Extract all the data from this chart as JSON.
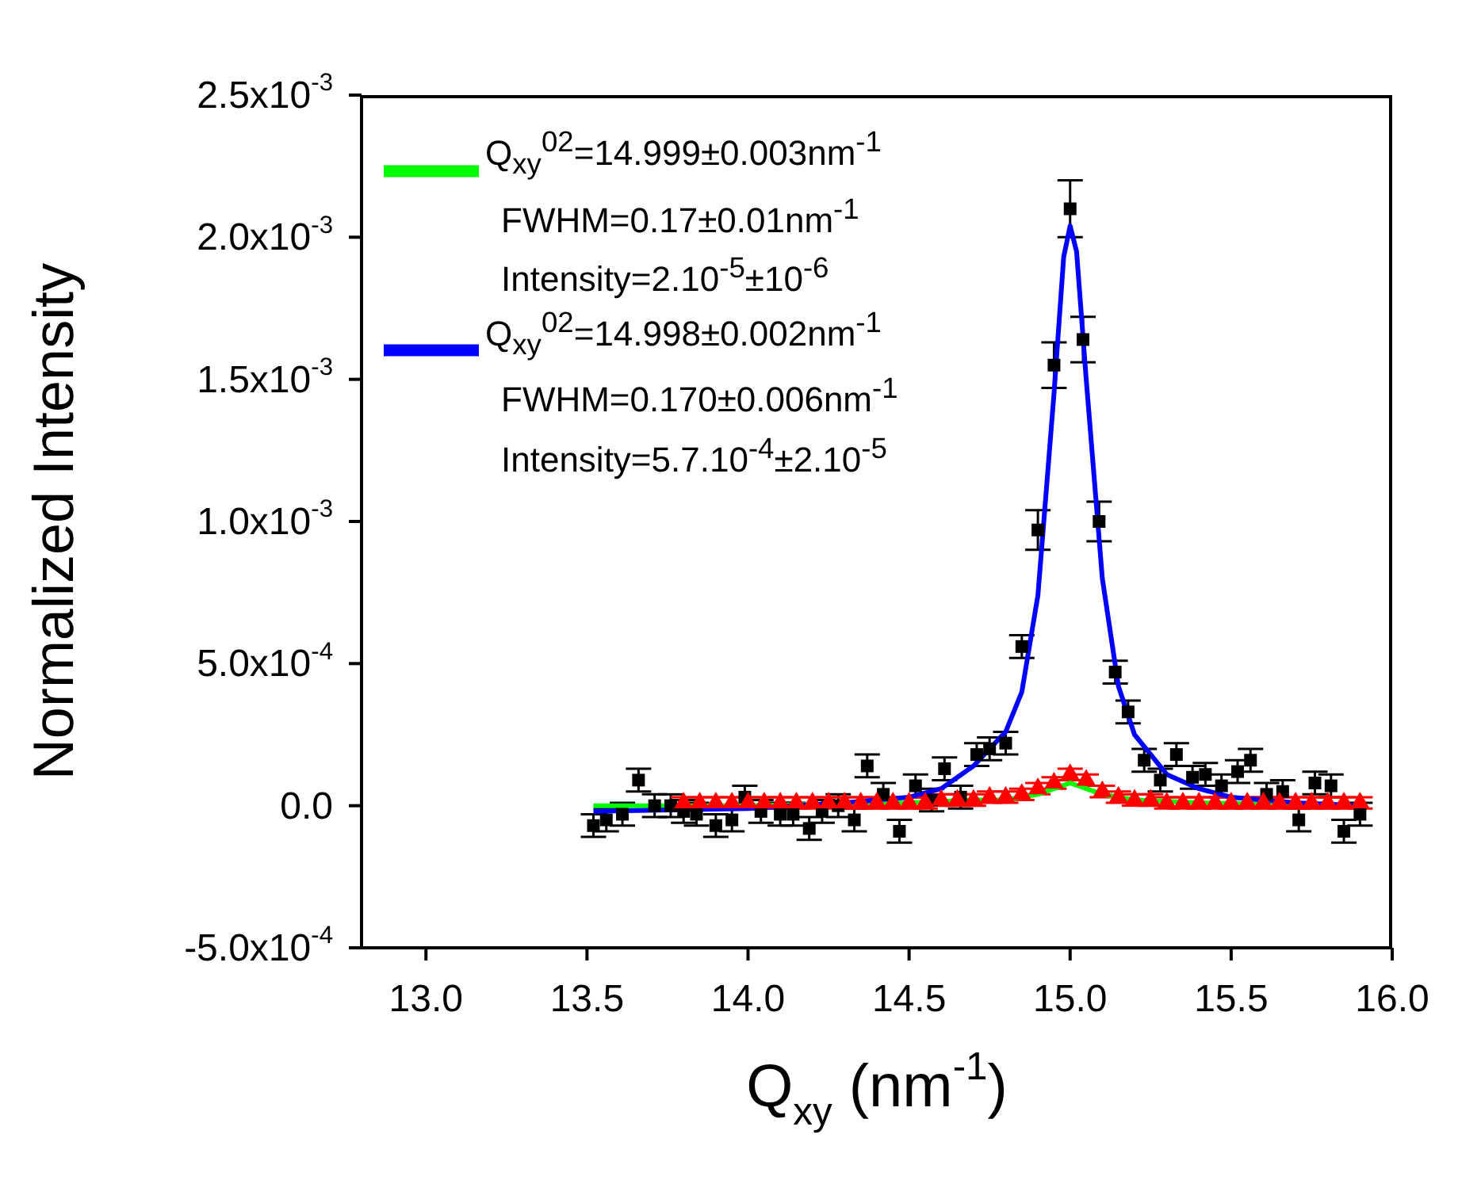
{
  "chart_data": {
    "type": "scatter",
    "xlabel": "Q$_{xy}$ (nm$^{-1}$)",
    "ylabel": "Normalized Intensity",
    "xlim": [
      12.8,
      16.0
    ],
    "xticks": [
      {
        "value": 13,
        "label": "13.0"
      },
      {
        "value": 13.5,
        "label": "13.5"
      },
      {
        "value": 14,
        "label": "14.0"
      },
      {
        "value": 14.5,
        "label": "14.5"
      },
      {
        "value": 15,
        "label": "15.0"
      },
      {
        "value": 15.5,
        "label": "15.5"
      },
      {
        "value": 16,
        "label": "16.0"
      }
    ],
    "ylim": [
      -0.0005,
      0.0025
    ],
    "yticks": [
      {
        "value": -0.0005,
        "label": "-5.0x10$^{-4}$"
      },
      {
        "value": 0,
        "label": "0.0"
      },
      {
        "value": 0.0005,
        "label": "5.0x10$^{-4}$"
      },
      {
        "value": 0.001,
        "label": "1.0x10$^{-3}$"
      },
      {
        "value": 0.0015,
        "label": "1.5x10$^{-3}$"
      },
      {
        "value": 0.002,
        "label": "2.0x10$^{-3}$"
      },
      {
        "value": 0.0025,
        "label": "2.5x10$^{-3}$"
      }
    ],
    "legend": "top left",
    "annotations": [
      "FWHM=0.17±0.01nm$^{-1}$",
      "Intensity=2.10$^{-5}$±10$^{-6}$",
      "FWHM=0.170±0.006nm$^{-1}$",
      "Intensity=5.7.10$^{-4}$±2.10$^{-5}$"
    ],
    "series": [
      {
        "marker": "square",
        "color": "#000000",
        "x": [
          13.52,
          13.56,
          13.61,
          13.66,
          13.71,
          13.76,
          13.8,
          13.84,
          13.9,
          13.95,
          13.99,
          14.04,
          14.1,
          14.14,
          14.19,
          14.23,
          14.28,
          14.33,
          14.37,
          14.42,
          14.47,
          14.52,
          14.57,
          14.61,
          14.66,
          14.71,
          14.75,
          14.8,
          14.85,
          14.9,
          14.95,
          15.0,
          15.04,
          15.09,
          15.14,
          15.18,
          15.23,
          15.28,
          15.33,
          15.38,
          15.42,
          15.47,
          15.52,
          15.56,
          15.61,
          15.66,
          15.71,
          15.76,
          15.81,
          15.85,
          15.9
        ],
        "values": [
          -7e-05,
          -5e-05,
          -3e-05,
          9e-05,
          0,
          0,
          -2e-05,
          -3e-05,
          -7e-05,
          -5e-05,
          3e-05,
          -2e-05,
          -3e-05,
          -3e-05,
          -8e-05,
          -2e-05,
          0,
          -5e-05,
          0.00014,
          4e-05,
          -9e-05,
          7e-05,
          2e-05,
          0.00013,
          3e-05,
          0.00018,
          0.0002,
          0.00022,
          0.00056,
          0.00097,
          0.00155,
          0.0021,
          0.00164,
          0.001,
          0.00047,
          0.00033,
          0.00016,
          9e-05,
          0.00018,
          0.0001,
          0.00011,
          7e-05,
          0.00012,
          0.00016,
          4e-05,
          5e-05,
          -5e-05,
          8e-05,
          7e-05,
          -9e-05,
          -3e-05
        ],
        "errors": [
          4e-05,
          4e-05,
          4e-05,
          4e-05,
          4e-05,
          4e-05,
          4e-05,
          4e-05,
          4e-05,
          4e-05,
          4e-05,
          4e-05,
          4e-05,
          4e-05,
          4e-05,
          4e-05,
          4e-05,
          4e-05,
          4e-05,
          4e-05,
          4e-05,
          4e-05,
          4e-05,
          4e-05,
          4e-05,
          4e-05,
          4e-05,
          4e-05,
          4e-05,
          7e-05,
          8e-05,
          0.0001,
          8e-05,
          7e-05,
          4e-05,
          4e-05,
          4e-05,
          4e-05,
          4e-05,
          4e-05,
          4e-05,
          4e-05,
          4e-05,
          4e-05,
          4e-05,
          4e-05,
          4e-05,
          4e-05,
          4e-05,
          4e-05,
          4e-05
        ]
      },
      {
        "marker": "triangle",
        "color": "#ff0000",
        "x": [
          13.8,
          13.85,
          13.9,
          13.95,
          14.0,
          14.05,
          14.1,
          14.15,
          14.2,
          14.25,
          14.3,
          14.35,
          14.4,
          14.45,
          14.5,
          14.55,
          14.6,
          14.65,
          14.7,
          14.75,
          14.8,
          14.85,
          14.9,
          14.95,
          15.0,
          15.05,
          15.1,
          15.15,
          15.2,
          15.25,
          15.3,
          15.35,
          15.4,
          15.45,
          15.5,
          15.55,
          15.6,
          15.65,
          15.7,
          15.75,
          15.8,
          15.85,
          15.9
        ],
        "values": [
          1e-05,
          1e-05,
          1e-05,
          1e-05,
          1e-05,
          1e-05,
          1e-05,
          1e-05,
          1e-05,
          1e-05,
          1e-05,
          1e-05,
          1e-05,
          1e-05,
          1e-05,
          1e-05,
          2e-05,
          2e-05,
          2e-05,
          3e-05,
          3e-05,
          4e-05,
          6e-05,
          8e-05,
          0.00011,
          9e-05,
          5e-05,
          3e-05,
          2e-05,
          2e-05,
          1e-05,
          1e-05,
          1e-05,
          1e-05,
          1e-05,
          1e-05,
          1e-05,
          1e-05,
          1e-05,
          1e-05,
          1e-05,
          1e-05,
          1e-05
        ],
        "errors": [
          2e-05,
          2e-05,
          2e-05,
          2e-05,
          2e-05,
          2e-05,
          2e-05,
          2e-05,
          2e-05,
          2e-05,
          2e-05,
          2e-05,
          2e-05,
          2e-05,
          2e-05,
          2e-05,
          2e-05,
          2e-05,
          2e-05,
          2e-05,
          2e-05,
          2e-05,
          2e-05,
          2e-05,
          2e-05,
          2e-05,
          2e-05,
          2e-05,
          2e-05,
          2e-05,
          2e-05,
          2e-05,
          2e-05,
          2e-05,
          2e-05,
          2e-05,
          2e-05,
          2e-05,
          2e-05,
          2e-05,
          2e-05,
          2e-05,
          2e-05
        ]
      },
      {
        "type": "line",
        "marker": "none",
        "color": "#00ff00",
        "name": "Q$_{xy}$$^{02}$=14.999±0.003nm$^{-1}$",
        "x": [
          13.52,
          14.0,
          14.5,
          14.7,
          14.8,
          14.9,
          14.95,
          15.0,
          15.05,
          15.1,
          15.2,
          15.4,
          15.92
        ],
        "values": [
          0,
          0,
          1e-05,
          2e-05,
          2e-05,
          4e-05,
          6e-05,
          8e-05,
          6e-05,
          4e-05,
          2e-05,
          1e-05,
          0
        ]
      },
      {
        "type": "line",
        "marker": "none",
        "color": "#0000ff",
        "name": "Q$_{xy}$$^{02}$=14.998±0.002nm$^{-1}$",
        "x": [
          13.52,
          14.0,
          14.3,
          14.5,
          14.6,
          14.7,
          14.8,
          14.85,
          14.9,
          14.95,
          14.98,
          15.0,
          15.02,
          15.05,
          15.1,
          15.15,
          15.2,
          15.3,
          15.4,
          15.5,
          15.7,
          15.92
        ],
        "values": [
          -2e-05,
          -1e-05,
          1e-05,
          3e-05,
          6e-05,
          0.00014,
          0.00026,
          0.0004,
          0.00074,
          0.00145,
          0.00193,
          0.00204,
          0.00195,
          0.0015,
          0.0008,
          0.00042,
          0.00025,
          0.00011,
          6e-05,
          3e-05,
          1e-05,
          0
        ]
      }
    ]
  }
}
